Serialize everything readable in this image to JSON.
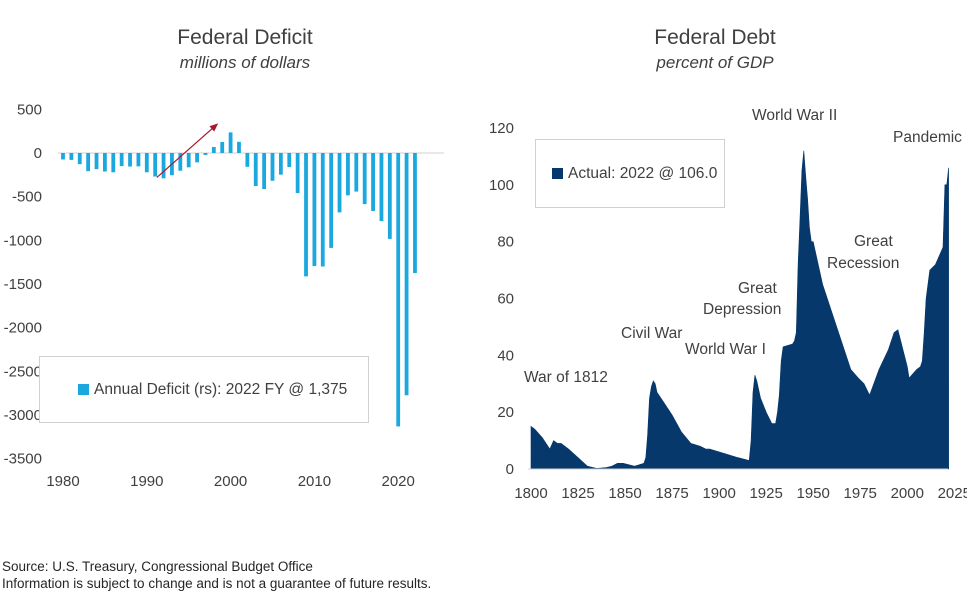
{
  "colors": {
    "deficit": "#1ba8df",
    "debt": "#06386b",
    "arrow": "#a6192e"
  },
  "left": {
    "title": "Federal Deficit",
    "subtitle": "millions of dollars",
    "legend": "Annual Deficit (rs): 2022 FY @ 1,375"
  },
  "right": {
    "title": "Federal Debt",
    "subtitle": "percent of GDP",
    "legend": "Actual: 2022 @ 106.0"
  },
  "footer": {
    "line1": "Source: U.S. Treasury, Congressional Budget Office",
    "line2": "Information is subject to change and is not a guarantee of future results."
  },
  "chart_data": [
    {
      "type": "bar",
      "title": "Federal Deficit",
      "subtitle": "millions of dollars",
      "ylim": [
        -3500,
        500
      ],
      "yticks": [
        500,
        0,
        -500,
        -1000,
        -1500,
        -2000,
        -2500,
        -3000,
        -3500
      ],
      "xlim": [
        1979,
        2027
      ],
      "xticks": [
        1980,
        1990,
        2000,
        2010,
        2020
      ],
      "legend": "top-left box inside plot",
      "series": [
        {
          "name": "Annual Deficit (rs): 2022 FY @ 1,375",
          "x": [
            1980,
            1981,
            1982,
            1983,
            1984,
            1985,
            1986,
            1987,
            1988,
            1989,
            1990,
            1991,
            1992,
            1993,
            1994,
            1995,
            1996,
            1997,
            1998,
            1999,
            2000,
            2001,
            2002,
            2003,
            2004,
            2005,
            2006,
            2007,
            2008,
            2009,
            2010,
            2011,
            2012,
            2013,
            2014,
            2015,
            2016,
            2017,
            2018,
            2019,
            2020,
            2021,
            2022
          ],
          "values": [
            -74,
            -79,
            -128,
            -208,
            -185,
            -212,
            -221,
            -150,
            -155,
            -153,
            -221,
            -269,
            -290,
            -255,
            -203,
            -164,
            -107,
            -22,
            69,
            126,
            236,
            128,
            -158,
            -378,
            -413,
            -318,
            -248,
            -161,
            -459,
            -1413,
            -1294,
            -1300,
            -1087,
            -680,
            -485,
            -442,
            -585,
            -665,
            -779,
            -984,
            -3132,
            -2775,
            -1375
          ]
        }
      ],
      "annotation": "arrow from 1992 low toward 2000 surplus"
    },
    {
      "type": "area",
      "title": "Federal Debt",
      "subtitle": "percent of GDP",
      "ylim": [
        0,
        120
      ],
      "yticks": [
        0,
        20,
        40,
        60,
        80,
        100,
        120
      ],
      "xlim": [
        1800,
        2025
      ],
      "xticks": [
        1800,
        1825,
        1850,
        1875,
        1900,
        1925,
        1950,
        1975,
        2000,
        2025
      ],
      "legend": "top-left box inside plot",
      "series": [
        {
          "name": "Actual: 2022 @ 106.0",
          "x": [
            1800,
            1802,
            1806,
            1810,
            1812,
            1814,
            1816,
            1820,
            1825,
            1830,
            1833,
            1835,
            1840,
            1843,
            1846,
            1849,
            1855,
            1860,
            1861,
            1862,
            1863,
            1864,
            1865,
            1866,
            1867,
            1870,
            1875,
            1880,
            1885,
            1890,
            1893,
            1895,
            1900,
            1905,
            1910,
            1916,
            1917,
            1918,
            1919,
            1920,
            1922,
            1925,
            1928,
            1930,
            1931,
            1932,
            1933,
            1934,
            1939,
            1940,
            1941,
            1942,
            1943,
            1944,
            1945,
            1946,
            1947,
            1948,
            1949,
            1950,
            1955,
            1960,
            1965,
            1970,
            1974,
            1977,
            1980,
            1985,
            1990,
            1993,
            1995,
            2000,
            2001,
            2005,
            2007,
            2008,
            2009,
            2010,
            2012,
            2015,
            2019,
            2020,
            2021,
            2022
          ],
          "values": [
            15,
            14,
            11,
            7,
            10,
            9,
            9,
            7,
            4,
            1,
            0.5,
            0.2,
            0.5,
            1,
            2,
            2,
            1,
            2,
            4,
            12,
            25,
            29,
            31,
            30,
            27,
            24,
            19,
            13,
            9,
            8,
            7,
            7,
            6,
            5,
            4,
            3,
            10,
            27,
            33,
            31,
            25,
            20,
            16,
            16,
            20,
            26,
            38,
            43,
            44,
            45,
            48,
            72,
            88,
            105,
            112,
            103,
            95,
            85,
            80,
            80,
            65,
            55,
            45,
            35,
            32,
            30,
            26,
            35,
            42,
            48,
            49,
            36,
            32,
            35,
            36,
            38,
            48,
            60,
            70,
            72,
            78,
            100,
            100,
            106
          ]
        }
      ],
      "annotations": [
        {
          "label": "War of 1812",
          "x": 1812
        },
        {
          "label": "Civil War",
          "x": 1865
        },
        {
          "label": "World War I",
          "x": 1918
        },
        {
          "label": "Great Depression",
          "x": 1933
        },
        {
          "label": "World War II",
          "x": 1945
        },
        {
          "label": "Great Recession",
          "x": 2009
        },
        {
          "label": "Pandemic",
          "x": 2020
        }
      ]
    }
  ]
}
